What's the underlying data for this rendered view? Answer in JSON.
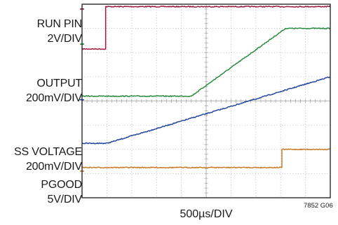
{
  "chart_data": {
    "type": "line",
    "title": "",
    "xlabel": "500µs/DIV",
    "ylabel": "",
    "figure_id": "7852 G06",
    "grid": true,
    "x_divisions": 10,
    "y_divisions": 8,
    "x_unit": "div",
    "y_unit": "div",
    "channels": [
      {
        "id": "run",
        "label_lines": [
          "RUN PIN",
          "2V/DIV"
        ],
        "color": "#9b1b3e",
        "marker_y": 3.8
      },
      {
        "id": "output",
        "label_lines": [
          "OUTPUT",
          "200mV/DIV"
        ],
        "color": "#2a8a3f",
        "marker_y": 2.35
      },
      {
        "id": "ss",
        "label_lines": [
          "SS VOLTAGE",
          "200mV/DIV"
        ],
        "color": "#24469a",
        "marker_y": 0.05
      },
      {
        "id": "pgood",
        "label_lines": [
          "PGOOD",
          "5V/DIV"
        ],
        "color": "#c77b26",
        "marker_y": -2.9
      }
    ],
    "series": [
      {
        "name": "RUN PIN",
        "color": "#9b1b3e",
        "x": [
          0,
          0.95,
          0.95,
          10
        ],
        "y": [
          2.15,
          2.15,
          3.9,
          3.9
        ]
      },
      {
        "name": "OUTPUT",
        "color": "#2a8a3f",
        "x": [
          0,
          4.4,
          8.2,
          10
        ],
        "y": [
          0.2,
          0.2,
          3.0,
          3.0
        ]
      },
      {
        "name": "SS VOLTAGE",
        "color": "#24469a",
        "x": [
          0,
          1.0,
          10
        ],
        "y": [
          -1.75,
          -1.75,
          1.0
        ]
      },
      {
        "name": "PGOOD",
        "color": "#c77b26",
        "x": [
          0,
          8.05,
          8.05,
          10
        ],
        "y": [
          -2.75,
          -2.75,
          -2.0,
          -2.0
        ]
      }
    ]
  }
}
